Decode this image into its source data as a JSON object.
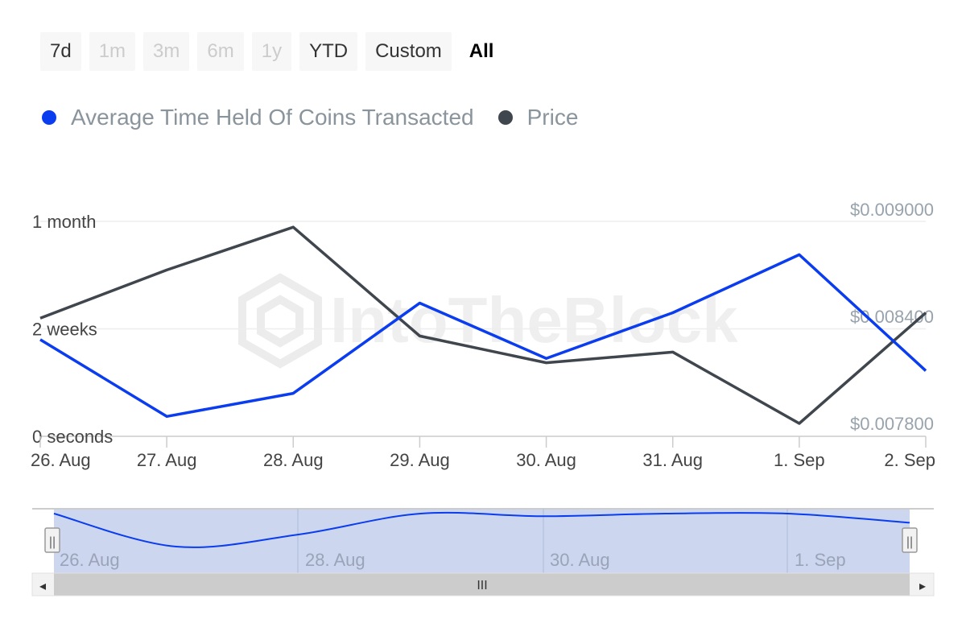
{
  "range_buttons": [
    {
      "label": "7d",
      "state": "enabled"
    },
    {
      "label": "1m",
      "state": "disabled"
    },
    {
      "label": "3m",
      "state": "disabled"
    },
    {
      "label": "6m",
      "state": "disabled"
    },
    {
      "label": "1y",
      "state": "disabled"
    },
    {
      "label": "YTD",
      "state": "enabled"
    },
    {
      "label": "Custom",
      "state": "enabled"
    },
    {
      "label": "All",
      "state": "selected"
    }
  ],
  "watermark": "IntoTheBlock",
  "colors": {
    "time_held": "#0a3cf0",
    "price": "#40464d",
    "grid": "#eeeeee",
    "axis_text": "#444444",
    "price_axis_text": "#98a3ad",
    "navigator_fill": "#ccd6ee"
  },
  "chart_data": {
    "type": "line",
    "x": [
      "26. Aug",
      "27. Aug",
      "28. Aug",
      "29. Aug",
      "30. Aug",
      "31. Aug",
      "1. Sep",
      "2. Sep"
    ],
    "left_axis": {
      "ticks": [
        "0 seconds",
        "2 weeks",
        "1 month"
      ],
      "units": "weeks",
      "ylim": [
        0,
        4
      ]
    },
    "right_axis": {
      "ticks": [
        "$0.007800",
        "$0.008400",
        "$0.009000"
      ],
      "ylim": [
        0.0078,
        0.009
      ]
    },
    "series": [
      {
        "name": "Average Time Held Of Coins Transacted",
        "axis": "left",
        "values": [
          1.8,
          0.37,
          0.8,
          2.48,
          1.45,
          2.3,
          3.38,
          1.22
        ]
      },
      {
        "name": "Price",
        "axis": "right",
        "values": [
          0.00839,
          0.00866,
          0.0089,
          0.00829,
          0.00814,
          0.0082,
          0.0078,
          0.00842
        ]
      }
    ],
    "legend_position": "top-left",
    "grid": true
  },
  "navigator": {
    "labels": [
      "26. Aug",
      "28. Aug",
      "30. Aug",
      "1. Sep"
    ],
    "scroll_grip": "III",
    "left_arrow": "◂",
    "right_arrow": "▸",
    "handle_grip": "||"
  }
}
